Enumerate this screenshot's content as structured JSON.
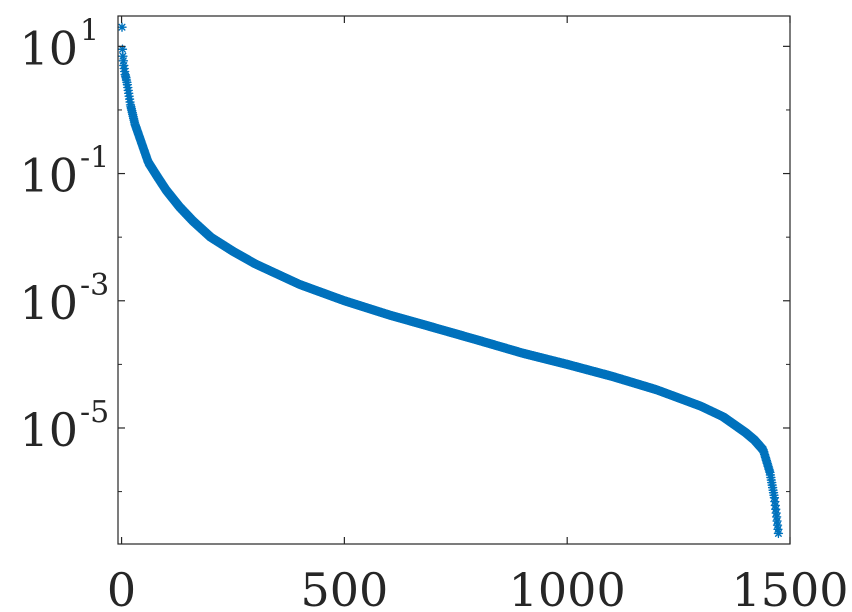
{
  "chart_data": {
    "type": "scatter",
    "title": "",
    "xlabel": "",
    "ylabel": "",
    "xlim": [
      -8,
      1500
    ],
    "ylim": [
      1.5e-07,
      30
    ],
    "yscale": "log",
    "grid": false,
    "marker": "asterisk",
    "colors": {
      "series": "#0072BD",
      "axis": "#262626",
      "background": "#ffffff"
    },
    "x_ticks": [
      {
        "value": 0,
        "label": "0"
      },
      {
        "value": 500,
        "label": "500"
      },
      {
        "value": 1000,
        "label": "1000"
      },
      {
        "value": 1500,
        "label": "1500"
      }
    ],
    "y_ticks": [
      {
        "value": 10,
        "base": "10",
        "exp": "1"
      },
      {
        "value": 0.1,
        "base": "10",
        "exp": "-1"
      },
      {
        "value": 0.001,
        "base": "10",
        "exp": "-3"
      },
      {
        "value": 1e-05,
        "base": "10",
        "exp": "-5"
      }
    ],
    "y_minor_ticks": [
      1,
      0.01,
      0.0001,
      1e-06,
      1e-07
    ],
    "series": [
      {
        "n_points": 1474,
        "x": [
          1,
          2,
          3,
          5,
          8,
          10,
          13,
          20,
          30,
          45,
          60,
          80,
          100,
          130,
          160,
          200,
          250,
          300,
          400,
          500,
          600,
          700,
          800,
          900,
          1000,
          1100,
          1200,
          1300,
          1350,
          1400,
          1420,
          1440,
          1455,
          1465,
          1470,
          1474
        ],
        "y": [
          20,
          9,
          7,
          5,
          3.6,
          3.2,
          2.5,
          1.2,
          0.6,
          0.3,
          0.15,
          0.09,
          0.055,
          0.03,
          0.018,
          0.01,
          0.006,
          0.0038,
          0.0018,
          0.001,
          0.0006,
          0.00038,
          0.00024,
          0.00015,
          0.0001,
          6.5e-05,
          4e-05,
          2.2e-05,
          1.5e-05,
          8.5e-06,
          6.5e-06,
          4.5e-06,
          2e-06,
          8e-07,
          4e-07,
          2.2e-07
        ]
      }
    ]
  }
}
